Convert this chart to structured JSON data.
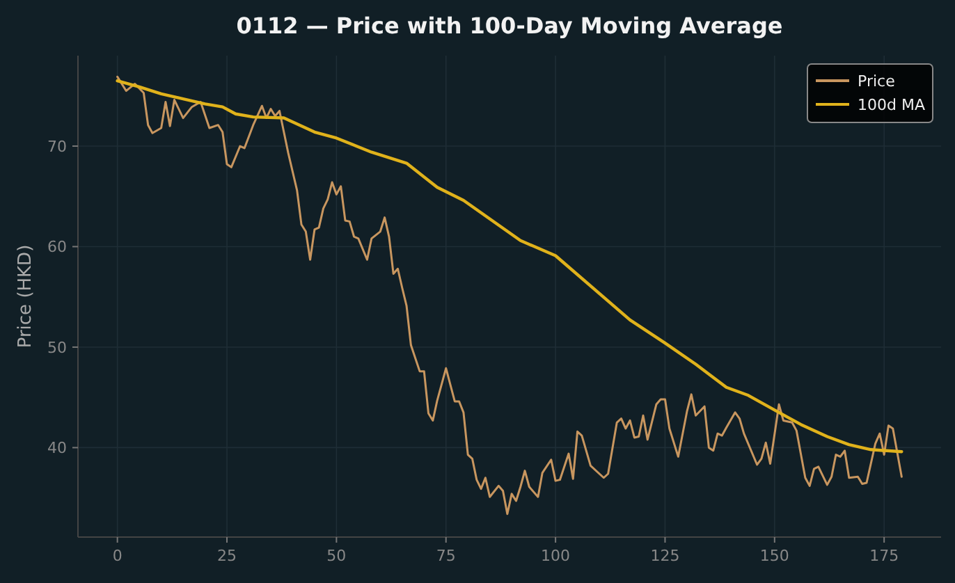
{
  "chart_data": {
    "type": "line",
    "title": "0112 — Price with 100-Day Moving Average",
    "ylabel": "Price (HKD)",
    "xlim": [
      -9,
      188
    ],
    "ylim": [
      31.1,
      79
    ],
    "xticks": [
      0,
      25,
      50,
      75,
      100,
      125,
      150,
      175
    ],
    "yticks": [
      40,
      50,
      60,
      70
    ],
    "grid": true,
    "legend": "top right",
    "line_style": "solid",
    "marker": "none",
    "series": [
      {
        "name": "Price",
        "color": "#c8965f",
        "x": [
          0,
          2,
          4,
          6,
          7,
          8,
          10,
          11,
          12,
          13,
          15,
          17,
          19,
          21,
          23,
          24,
          25,
          26,
          28,
          29,
          31,
          33,
          34,
          35,
          36,
          37,
          39,
          41,
          42,
          43,
          44,
          45,
          46,
          47,
          48,
          49,
          50,
          51,
          52,
          53,
          54,
          55,
          57,
          58,
          60,
          61,
          62,
          63,
          64,
          65,
          66,
          67,
          69,
          70,
          71,
          72,
          73,
          75,
          77,
          78,
          79,
          80,
          81,
          82,
          83,
          84,
          85,
          87,
          88,
          89,
          90,
          91,
          92,
          93,
          94,
          96,
          97,
          99,
          100,
          101,
          103,
          104,
          105,
          106,
          108,
          111,
          112,
          114,
          115,
          116,
          117,
          118,
          119,
          120,
          121,
          123,
          124,
          125,
          126,
          128,
          130,
          131,
          132,
          134,
          135,
          136,
          137,
          138,
          139,
          141,
          142,
          143,
          146,
          147,
          148,
          149,
          151,
          152,
          154,
          155,
          157,
          158,
          159,
          160,
          162,
          163,
          164,
          165,
          166,
          167,
          169,
          170,
          171,
          173,
          174,
          175,
          176,
          177,
          179
        ],
        "values": [
          76.9,
          75.5,
          76.2,
          75.3,
          72.1,
          71.3,
          71.8,
          74.4,
          72,
          74.6,
          72.8,
          73.9,
          74.4,
          71.8,
          72.1,
          71.4,
          68.2,
          67.9,
          70,
          69.8,
          72.1,
          74,
          72.8,
          73.7,
          73,
          73.5,
          69.3,
          65.6,
          62.2,
          61.5,
          58.7,
          61.7,
          61.9,
          63.8,
          64.7,
          66.4,
          65.2,
          66,
          62.6,
          62.5,
          61,
          60.8,
          58.7,
          60.8,
          61.5,
          62.9,
          61,
          57.3,
          57.8,
          55.9,
          54.1,
          50.2,
          47.6,
          47.6,
          43.4,
          42.7,
          44.7,
          47.9,
          44.6,
          44.6,
          43.5,
          39.3,
          38.9,
          36.8,
          35.9,
          37,
          35.1,
          36.2,
          35.7,
          33.4,
          35.4,
          34.7,
          36.1,
          37.7,
          36.1,
          35.1,
          37.5,
          38.8,
          36.7,
          36.8,
          39.4,
          36.9,
          41.6,
          41.2,
          38.2,
          37,
          37.4,
          42.5,
          42.9,
          41.9,
          42.7,
          41,
          41.1,
          43.2,
          40.8,
          44.3,
          44.8,
          44.8,
          41.9,
          39.1,
          43.6,
          45.3,
          43.2,
          44.1,
          40,
          39.7,
          41.4,
          41.2,
          42,
          43.5,
          42.9,
          41.4,
          38.3,
          38.9,
          40.5,
          38.4,
          44.3,
          42.7,
          42.5,
          41.7,
          37,
          36.2,
          37.9,
          38.1,
          36.3,
          37.1,
          39.3,
          39.1,
          39.7,
          37,
          37.1,
          36.4,
          36.5,
          40.4,
          41.4,
          39.3,
          42.2,
          41.9,
          37.1
        ]
      },
      {
        "name": "100d MA",
        "color": "#e0b21b",
        "x": [
          0,
          5,
          10,
          15,
          20,
          24,
          27,
          31,
          38,
          45,
          50,
          58,
          66,
          73,
          79,
          92,
          100,
          117,
          125,
          132,
          139,
          144,
          151,
          156,
          162,
          167,
          172,
          179
        ],
        "values": [
          76.5,
          75.9,
          75.2,
          74.7,
          74.2,
          73.9,
          73.2,
          72.9,
          72.8,
          71.4,
          70.8,
          69.4,
          68.3,
          65.9,
          64.6,
          60.6,
          59.1,
          52.7,
          50.4,
          48.3,
          46,
          45.2,
          43.5,
          42.3,
          41.1,
          40.3,
          39.8,
          39.6
        ]
      }
    ]
  }
}
